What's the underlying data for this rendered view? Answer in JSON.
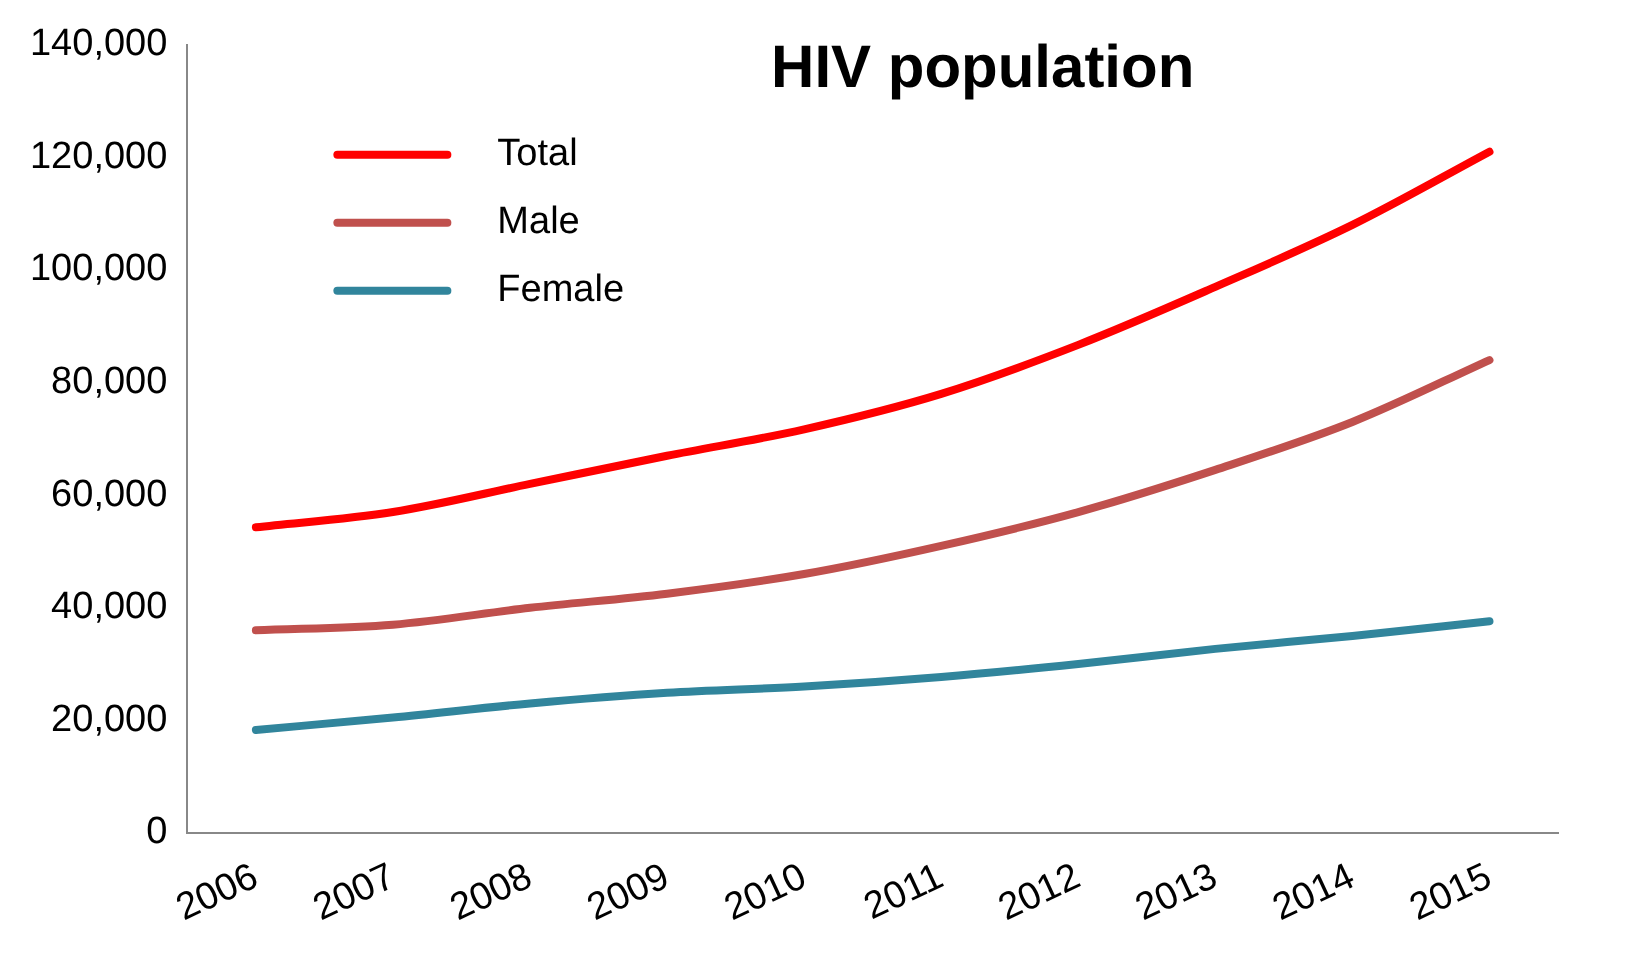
{
  "chart_data": {
    "type": "line",
    "title": "HIV population",
    "categories": [
      "2006",
      "2007",
      "2008",
      "2009",
      "2010",
      "2011",
      "2012",
      "2013",
      "2014",
      "2015"
    ],
    "series": [
      {
        "name": "Total",
        "color": "#ff0000",
        "values": [
          54300,
          57000,
          62000,
          67000,
          71700,
          78000,
          86700,
          97000,
          108000,
          121000
        ]
      },
      {
        "name": "Male",
        "color": "#c0504d",
        "values": [
          36000,
          37000,
          40000,
          42500,
          46000,
          51000,
          57000,
          64500,
          73000,
          84000
        ]
      },
      {
        "name": "Female",
        "color": "#31859c",
        "values": [
          18300,
          20500,
          23000,
          24900,
          26000,
          27700,
          30000,
          32700,
          35000,
          37600
        ]
      }
    ],
    "ylim": [
      0,
      140000
    ],
    "yticks": [
      0,
      {
        "value": 20000,
        "label": "20,000"
      },
      {
        "value": 40000,
        "label": "40,000"
      },
      {
        "value": 60000,
        "label": "60,000"
      },
      {
        "value": 80000,
        "label": "80,000"
      },
      {
        "value": 100000,
        "label": "100,000"
      },
      {
        "value": 120000,
        "label": "120,000"
      },
      {
        "value": 140000,
        "label": "140,000"
      }
    ],
    "grid": false,
    "legend": "top left",
    "marker": "none",
    "line_style": "solid"
  }
}
